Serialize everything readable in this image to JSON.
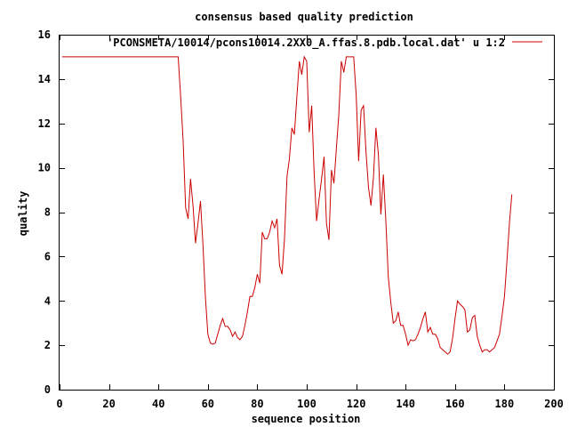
{
  "chart_data": {
    "type": "line",
    "title": "consensus based quality prediction",
    "xlabel": "sequence position",
    "ylabel": "quality",
    "xlim": [
      0,
      200
    ],
    "ylim": [
      0,
      16
    ],
    "xticks": [
      0,
      20,
      40,
      60,
      80,
      100,
      120,
      140,
      160,
      180,
      200
    ],
    "yticks": [
      0,
      2,
      4,
      6,
      8,
      10,
      12,
      14,
      16
    ],
    "grid": false,
    "legend": "top-right",
    "series": [
      {
        "name": "'PCONSMETA/10014/pcons10014.2XX0_A.ffas.8.pdb.local.dat' u 1:2",
        "color": "#cc0000",
        "points": [
          [
            1,
            15
          ],
          [
            10,
            15
          ],
          [
            20,
            15
          ],
          [
            30,
            15
          ],
          [
            40,
            15
          ],
          [
            47,
            15
          ],
          [
            48,
            15
          ],
          [
            49,
            13.2
          ],
          [
            50,
            11.2
          ],
          [
            51,
            8.2
          ],
          [
            52,
            7.7
          ],
          [
            53,
            9.5
          ],
          [
            54,
            8.3
          ],
          [
            55,
            6.6
          ],
          [
            56,
            7.5
          ],
          [
            57,
            8.5
          ],
          [
            58,
            6.6
          ],
          [
            59,
            4.2
          ],
          [
            60,
            2.5
          ],
          [
            61,
            2.1
          ],
          [
            62,
            2.05
          ],
          [
            63,
            2.1
          ],
          [
            64,
            2.5
          ],
          [
            65,
            2.9
          ],
          [
            66,
            3.2
          ],
          [
            67,
            2.85
          ],
          [
            68,
            2.85
          ],
          [
            69,
            2.7
          ],
          [
            70,
            2.4
          ],
          [
            71,
            2.6
          ],
          [
            72,
            2.35
          ],
          [
            73,
            2.25
          ],
          [
            74,
            2.4
          ],
          [
            75,
            2.9
          ],
          [
            76,
            3.5
          ],
          [
            77,
            4.2
          ],
          [
            78,
            4.2
          ],
          [
            79,
            4.6
          ],
          [
            80,
            5.2
          ],
          [
            81,
            4.8
          ],
          [
            82,
            7.1
          ],
          [
            83,
            6.8
          ],
          [
            84,
            6.8
          ],
          [
            85,
            7.1
          ],
          [
            86,
            7.6
          ],
          [
            87,
            7.3
          ],
          [
            88,
            7.7
          ],
          [
            89,
            5.6
          ],
          [
            90,
            5.2
          ],
          [
            91,
            6.8
          ],
          [
            92,
            9.6
          ],
          [
            93,
            10.4
          ],
          [
            94,
            11.8
          ],
          [
            95,
            11.5
          ],
          [
            96,
            13.2
          ],
          [
            97,
            14.8
          ],
          [
            98,
            14.2
          ],
          [
            99,
            15
          ],
          [
            100,
            14.8
          ],
          [
            101,
            11.6
          ],
          [
            102,
            12.8
          ],
          [
            103,
            9.8
          ],
          [
            104,
            7.6
          ],
          [
            105,
            8.6
          ],
          [
            106,
            9.5
          ],
          [
            107,
            10.5
          ],
          [
            108,
            7.5
          ],
          [
            109,
            6.75
          ],
          [
            110,
            9.9
          ],
          [
            111,
            9.3
          ],
          [
            112,
            10.9
          ],
          [
            113,
            12.4
          ],
          [
            114,
            14.8
          ],
          [
            115,
            14.3
          ],
          [
            116,
            15
          ],
          [
            117,
            15
          ],
          [
            118,
            15
          ],
          [
            119,
            15
          ],
          [
            120,
            13.3
          ],
          [
            121,
            10.3
          ],
          [
            122,
            12.6
          ],
          [
            123,
            12.8
          ],
          [
            124,
            10.7
          ],
          [
            125,
            9.1
          ],
          [
            126,
            8.3
          ],
          [
            127,
            9.6
          ],
          [
            128,
            11.8
          ],
          [
            129,
            10.6
          ],
          [
            130,
            7.9
          ],
          [
            131,
            9.7
          ],
          [
            132,
            7.6
          ],
          [
            133,
            5.1
          ],
          [
            134,
            3.95
          ],
          [
            135,
            3.0
          ],
          [
            136,
            3.1
          ],
          [
            137,
            3.5
          ],
          [
            138,
            2.9
          ],
          [
            139,
            2.9
          ],
          [
            140,
            2.5
          ],
          [
            141,
            2.0
          ],
          [
            142,
            2.25
          ],
          [
            143,
            2.2
          ],
          [
            144,
            2.25
          ],
          [
            145,
            2.5
          ],
          [
            146,
            2.8
          ],
          [
            147,
            3.2
          ],
          [
            148,
            3.5
          ],
          [
            149,
            2.6
          ],
          [
            150,
            2.8
          ],
          [
            151,
            2.5
          ],
          [
            152,
            2.5
          ],
          [
            153,
            2.3
          ],
          [
            154,
            1.9
          ],
          [
            155,
            1.8
          ],
          [
            156,
            1.7
          ],
          [
            157,
            1.6
          ],
          [
            158,
            1.7
          ],
          [
            159,
            2.3
          ],
          [
            160,
            3.2
          ],
          [
            161,
            4.0
          ],
          [
            162,
            3.85
          ],
          [
            163,
            3.75
          ],
          [
            164,
            3.6
          ],
          [
            165,
            2.6
          ],
          [
            166,
            2.7
          ],
          [
            167,
            3.25
          ],
          [
            168,
            3.35
          ],
          [
            169,
            2.4
          ],
          [
            170,
            2.0
          ],
          [
            171,
            1.7
          ],
          [
            172,
            1.8
          ],
          [
            173,
            1.8
          ],
          [
            174,
            1.7
          ],
          [
            175,
            1.8
          ],
          [
            176,
            1.9
          ],
          [
            177,
            2.2
          ],
          [
            178,
            2.5
          ],
          [
            179,
            3.3
          ],
          [
            180,
            4.2
          ],
          [
            181,
            5.8
          ],
          [
            182,
            7.5
          ],
          [
            183,
            8.8
          ]
        ]
      }
    ]
  }
}
